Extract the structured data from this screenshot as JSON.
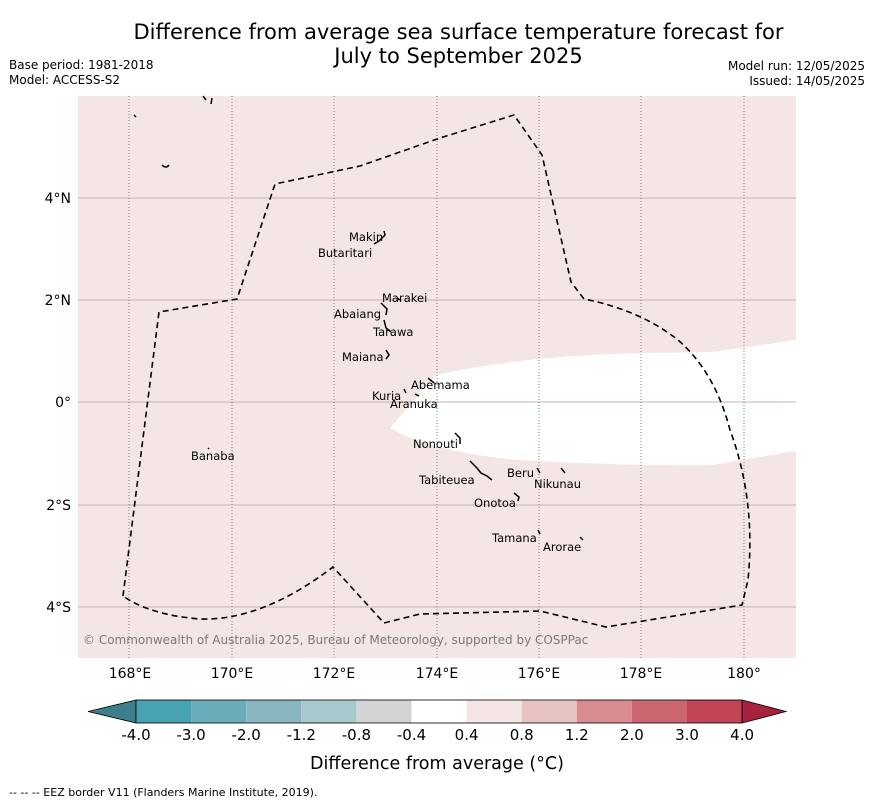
{
  "title_line1": "Difference from average sea surface temperature forecast for",
  "title_line2": "July to September 2025",
  "meta": {
    "base_period": "Base period: 1981-2018",
    "model": "Model: ACCESS-S2",
    "model_run": "Model run: 12/05/2025",
    "issued": "Issued: 14/05/2025"
  },
  "map": {
    "lon_labels": [
      "168°E",
      "170°E",
      "172°E",
      "174°E",
      "176°E",
      "178°E",
      "180°"
    ],
    "lat_labels": [
      "4°N",
      "2°N",
      "0°",
      "2°S",
      "4°S"
    ],
    "islands": [
      {
        "name": "Makin"
      },
      {
        "name": "Butaritari"
      },
      {
        "name": "Marakei"
      },
      {
        "name": "Abaiang"
      },
      {
        "name": "Tarawa"
      },
      {
        "name": "Maiana"
      },
      {
        "name": "Abemama"
      },
      {
        "name": "Kuria"
      },
      {
        "name": "Aranuka"
      },
      {
        "name": "Nonouti"
      },
      {
        "name": "Banaba"
      },
      {
        "name": "Beru"
      },
      {
        "name": "Tabiteuea"
      },
      {
        "name": "Nikunau"
      },
      {
        "name": "Onotoa"
      },
      {
        "name": "Tamana"
      },
      {
        "name": "Arorae"
      }
    ],
    "copyright": "© Commonwealth of Australia 2025, Bureau of Meteorology, supported by COSPPac",
    "colors": {
      "light_pink": "#f4e6e5",
      "white": "#ffffff",
      "grid": "#cbb6b6"
    }
  },
  "colorbar": {
    "label": "Difference from average (°C)",
    "ticks": [
      "-4.0",
      "-3.0",
      "-2.0",
      "-1.2",
      "-0.8",
      "-0.4",
      "0.4",
      "0.8",
      "1.2",
      "2.0",
      "3.0",
      "4.0"
    ],
    "colors": [
      "#3e7f8e",
      "#48a2b1",
      "#6aadba",
      "#88b7c1",
      "#a8c9cd",
      "#d3d4d5",
      "#ffffff",
      "#f4e6e5",
      "#e8c4c0",
      "#d88c92",
      "#cb6771",
      "#c14556",
      "#a8213f"
    ]
  },
  "footnote": "--  --  -- EEZ border V11 (Flanders Marine Institute, 2019)."
}
